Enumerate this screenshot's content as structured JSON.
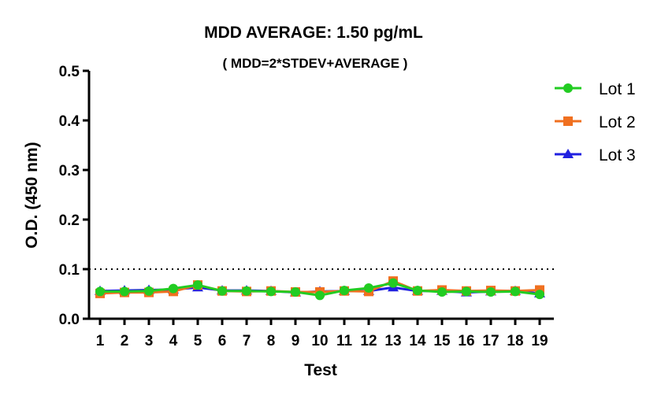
{
  "chart_data": {
    "type": "line",
    "title": "MDD AVERAGE:  1.50 pg/mL",
    "subtitle": "( MDD=2*STDEV+AVERAGE )",
    "xlabel": "Test",
    "ylabel": "O.D. (450 nm)",
    "ylim": [
      0.0,
      0.5
    ],
    "yticks": [
      "0.0",
      "0.1",
      "0.2",
      "0.3",
      "0.4",
      "0.5"
    ],
    "categories": [
      "1",
      "2",
      "3",
      "4",
      "5",
      "6",
      "7",
      "8",
      "9",
      "10",
      "11",
      "12",
      "13",
      "14",
      "15",
      "16",
      "17",
      "18",
      "19"
    ],
    "threshold": 0.1,
    "grid": false,
    "legend_position": "top-right",
    "series": [
      {
        "name": "Lot 1",
        "color": "#22cc22",
        "marker": "circle",
        "values": [
          0.055,
          0.055,
          0.056,
          0.061,
          0.068,
          0.056,
          0.056,
          0.055,
          0.054,
          0.047,
          0.057,
          0.062,
          0.072,
          0.057,
          0.054,
          0.055,
          0.054,
          0.055,
          0.049
        ]
      },
      {
        "name": "Lot 2",
        "color": "#f07020",
        "marker": "square",
        "values": [
          0.051,
          0.053,
          0.053,
          0.055,
          0.068,
          0.056,
          0.055,
          0.056,
          0.054,
          0.054,
          0.056,
          0.055,
          0.076,
          0.056,
          0.058,
          0.056,
          0.057,
          0.056,
          0.058
        ]
      },
      {
        "name": "Lot 3",
        "color": "#2020e0",
        "marker": "triangle",
        "values": [
          0.056,
          0.057,
          0.058,
          0.059,
          0.063,
          0.057,
          0.057,
          0.056,
          0.053,
          0.055,
          0.056,
          0.056,
          0.063,
          0.056,
          0.056,
          0.053,
          0.055,
          0.056,
          0.051
        ]
      }
    ]
  }
}
